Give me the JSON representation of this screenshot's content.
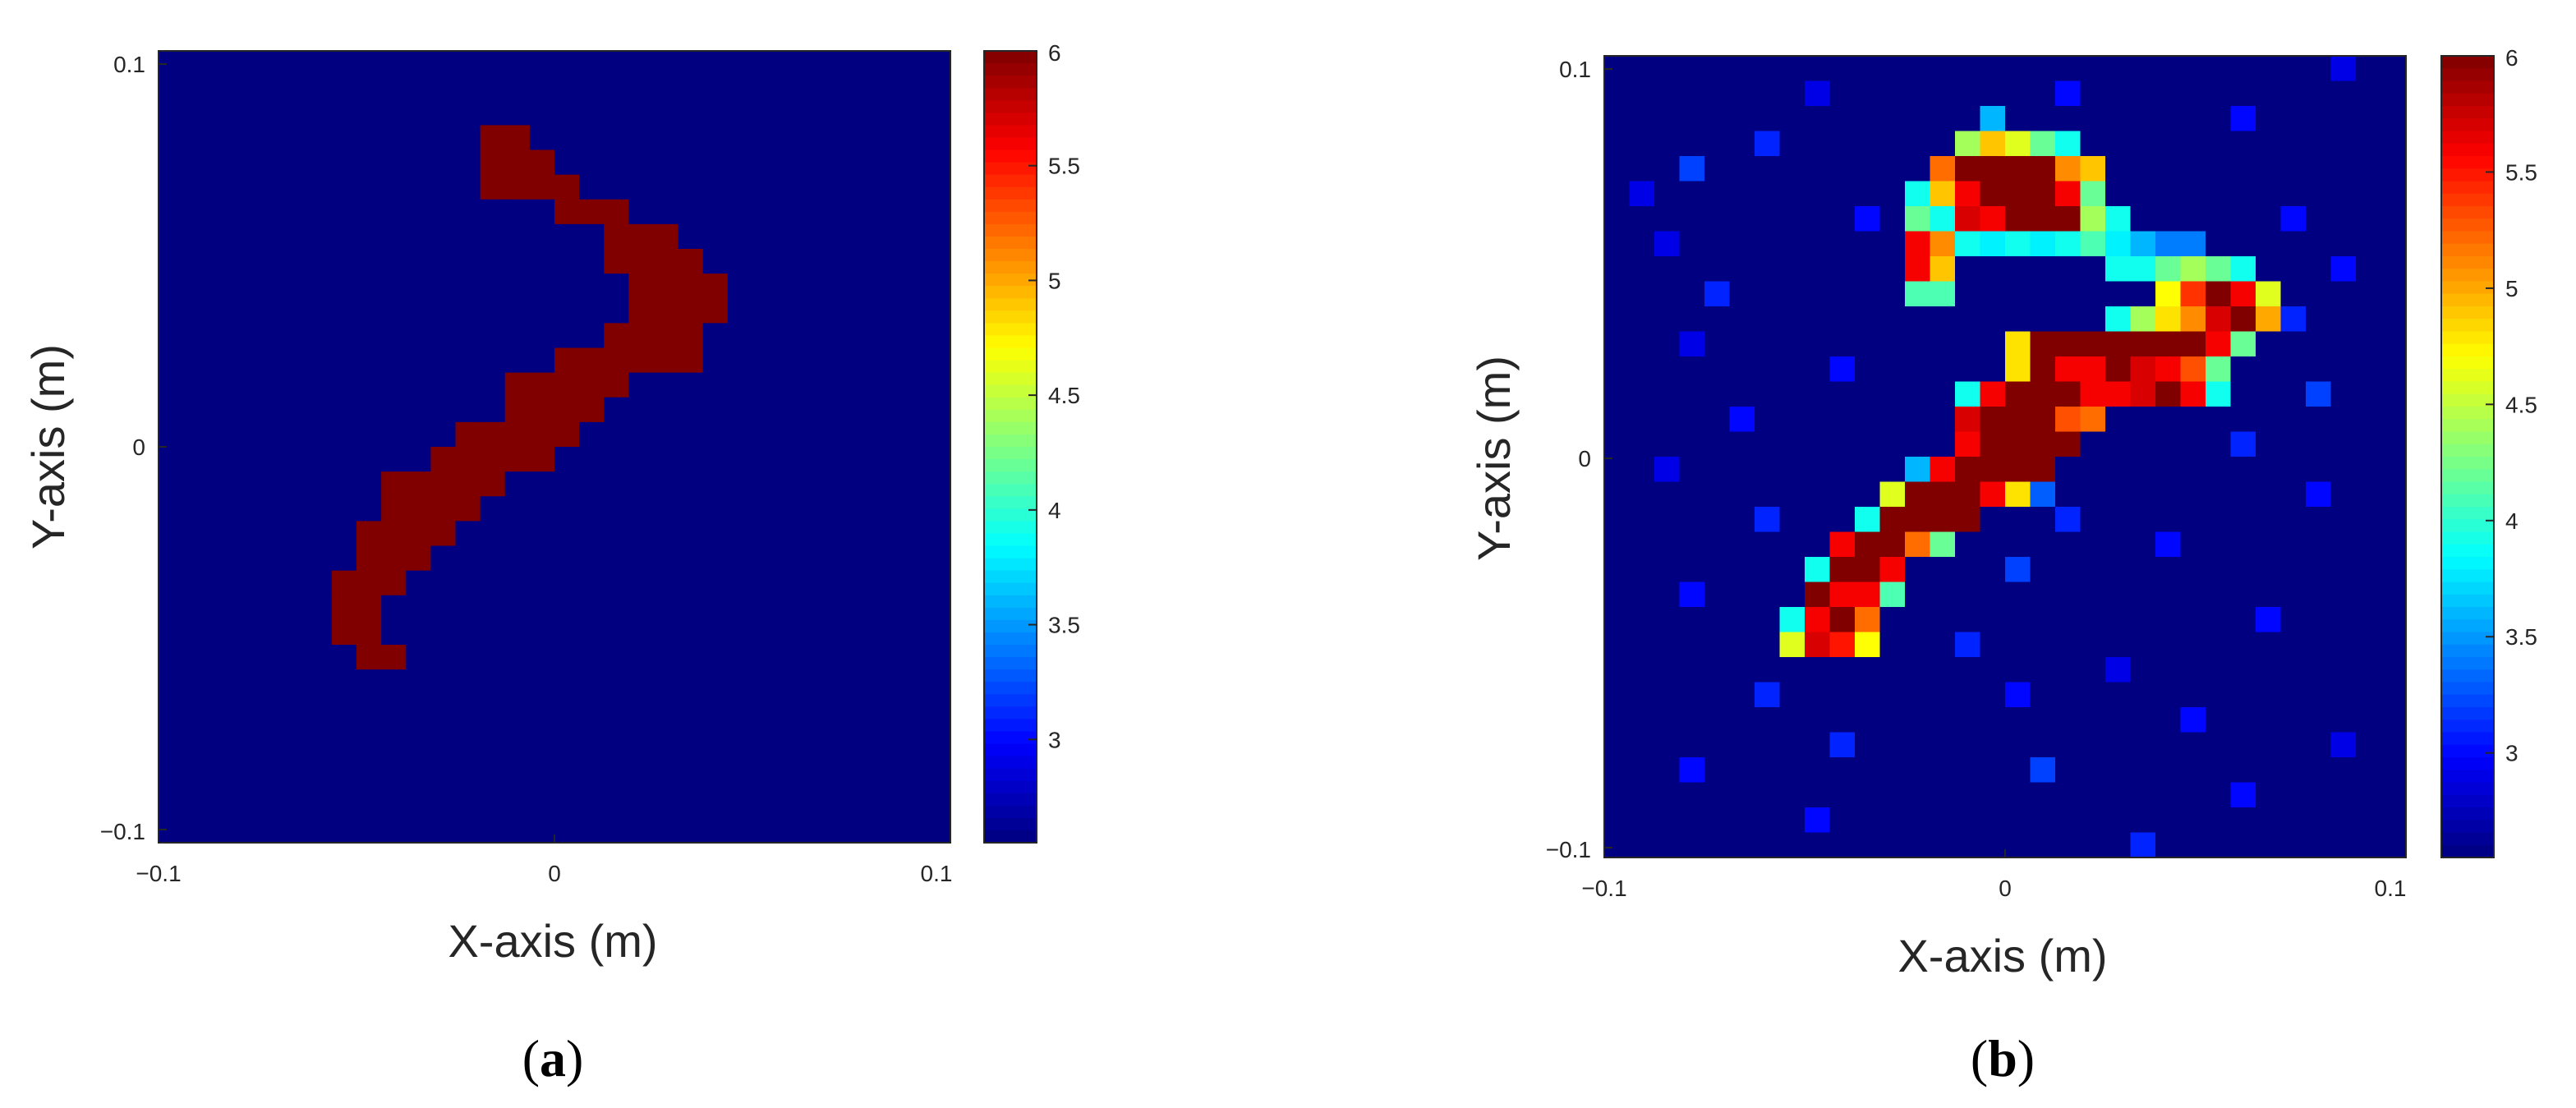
{
  "chart_data": [
    {
      "type": "heatmap",
      "panel_label": "a",
      "xlabel": "X-axis (m)",
      "ylabel": "Y-axis (m)",
      "xlim": [
        -0.1,
        0.1
      ],
      "ylim": [
        -0.1,
        0.1
      ],
      "grid_size": 32,
      "xticks": [
        "−0.1",
        "0",
        "0.1"
      ],
      "yticks": [
        "0.1",
        "0",
        "−0.1"
      ],
      "colorbar": {
        "min": 2.55,
        "max": 6,
        "ticks": [
          "6",
          "5.5",
          "5",
          "4.5",
          "4",
          "3.5",
          "3"
        ],
        "tick_values": [
          6,
          5.5,
          5,
          4.5,
          4,
          3.5,
          3
        ]
      },
      "background_value": 2.55,
      "shape_value": 6,
      "shape_row_spans": [
        [
          3,
          13,
          14
        ],
        [
          4,
          13,
          15
        ],
        [
          5,
          13,
          16
        ],
        [
          6,
          16,
          18
        ],
        [
          7,
          18,
          20
        ],
        [
          8,
          18,
          21
        ],
        [
          9,
          19,
          22
        ],
        [
          10,
          19,
          22
        ],
        [
          11,
          18,
          21
        ],
        [
          12,
          16,
          21
        ],
        [
          13,
          14,
          18
        ],
        [
          14,
          14,
          17
        ],
        [
          15,
          12,
          16
        ],
        [
          16,
          11,
          15
        ],
        [
          17,
          9,
          13
        ],
        [
          18,
          9,
          12
        ],
        [
          19,
          8,
          11
        ],
        [
          20,
          8,
          10
        ],
        [
          21,
          7,
          9
        ],
        [
          22,
          7,
          8
        ],
        [
          23,
          7,
          8
        ],
        [
          24,
          8,
          9
        ]
      ]
    },
    {
      "type": "heatmap",
      "panel_label": "b",
      "xlabel": "X-axis (m)",
      "ylabel": "Y-axis (m)",
      "xlim": [
        -0.1,
        0.1
      ],
      "ylim": [
        -0.1,
        0.1
      ],
      "grid_size": 32,
      "xticks": [
        "−0.1",
        "0",
        "0.1"
      ],
      "yticks": [
        "0.1",
        "0",
        "−0.1"
      ],
      "colorbar": {
        "min": 2.55,
        "max": 6,
        "ticks": [
          "6",
          "5.5",
          "5",
          "4.5",
          "4",
          "3.5",
          "3"
        ],
        "tick_values": [
          6,
          5.5,
          5,
          4.5,
          4,
          3.5,
          3
        ]
      },
      "background_value": 2.55,
      "cells": [
        [
          2,
          15,
          3.6
        ],
        [
          3,
          14,
          4.4
        ],
        [
          3,
          15,
          4.9
        ],
        [
          3,
          16,
          4.6
        ],
        [
          3,
          17,
          4.2
        ],
        [
          3,
          18,
          3.9
        ],
        [
          4,
          13,
          5.2
        ],
        [
          4,
          14,
          6
        ],
        [
          4,
          15,
          6
        ],
        [
          4,
          16,
          6
        ],
        [
          4,
          17,
          6
        ],
        [
          4,
          18,
          5.1
        ],
        [
          4,
          19,
          4.9
        ],
        [
          5,
          12,
          3.9
        ],
        [
          5,
          13,
          4.9
        ],
        [
          5,
          14,
          5.6
        ],
        [
          5,
          15,
          6
        ],
        [
          5,
          16,
          6
        ],
        [
          5,
          17,
          6
        ],
        [
          5,
          18,
          5.6
        ],
        [
          5,
          19,
          4.2
        ],
        [
          6,
          12,
          4.2
        ],
        [
          6,
          13,
          3.9
        ],
        [
          6,
          14,
          5.7
        ],
        [
          6,
          15,
          5.6
        ],
        [
          6,
          16,
          6
        ],
        [
          6,
          17,
          6
        ],
        [
          6,
          18,
          6
        ],
        [
          6,
          19,
          4.4
        ],
        [
          6,
          20,
          3.9
        ],
        [
          7,
          12,
          5.6
        ],
        [
          7,
          13,
          5.1
        ],
        [
          7,
          14,
          3.9
        ],
        [
          7,
          15,
          3.8
        ],
        [
          7,
          16,
          3.9
        ],
        [
          7,
          17,
          3.8
        ],
        [
          7,
          18,
          3.9
        ],
        [
          7,
          19,
          4.1
        ],
        [
          7,
          20,
          3.8
        ],
        [
          7,
          21,
          3.6
        ],
        [
          7,
          22,
          3.4
        ],
        [
          7,
          23,
          3.4
        ],
        [
          8,
          12,
          5.6
        ],
        [
          8,
          13,
          4.9
        ],
        [
          8,
          20,
          3.9
        ],
        [
          8,
          21,
          3.9
        ],
        [
          8,
          22,
          4.2
        ],
        [
          8,
          23,
          4.4
        ],
        [
          8,
          24,
          4.2
        ],
        [
          8,
          25,
          3.9
        ],
        [
          9,
          12,
          4.1
        ],
        [
          9,
          13,
          4.1
        ],
        [
          9,
          22,
          4.7
        ],
        [
          9,
          23,
          5.4
        ],
        [
          9,
          24,
          6
        ],
        [
          9,
          25,
          5.6
        ],
        [
          9,
          26,
          4.6
        ],
        [
          10,
          20,
          3.9
        ],
        [
          10,
          21,
          4.4
        ],
        [
          10,
          22,
          4.8
        ],
        [
          10,
          23,
          5.1
        ],
        [
          10,
          24,
          5.7
        ],
        [
          10,
          25,
          6
        ],
        [
          10,
          26,
          5
        ],
        [
          11,
          16,
          4.8
        ],
        [
          11,
          17,
          6
        ],
        [
          11,
          18,
          6
        ],
        [
          11,
          19,
          6
        ],
        [
          11,
          20,
          6
        ],
        [
          11,
          21,
          6
        ],
        [
          11,
          22,
          6
        ],
        [
          11,
          23,
          6
        ],
        [
          11,
          24,
          5.6
        ],
        [
          11,
          25,
          4.2
        ],
        [
          12,
          16,
          4.8
        ],
        [
          12,
          17,
          6
        ],
        [
          12,
          18,
          5.6
        ],
        [
          12,
          19,
          5.6
        ],
        [
          12,
          20,
          6
        ],
        [
          12,
          21,
          5.7
        ],
        [
          12,
          22,
          5.6
        ],
        [
          12,
          23,
          5.3
        ],
        [
          12,
          24,
          4.2
        ],
        [
          13,
          14,
          3.9
        ],
        [
          13,
          15,
          5.6
        ],
        [
          13,
          16,
          6
        ],
        [
          13,
          17,
          6
        ],
        [
          13,
          18,
          6
        ],
        [
          13,
          19,
          5.6
        ],
        [
          13,
          20,
          5.6
        ],
        [
          13,
          21,
          5.7
        ],
        [
          13,
          22,
          6
        ],
        [
          13,
          23,
          5.6
        ],
        [
          13,
          24,
          3.9
        ],
        [
          14,
          14,
          5.7
        ],
        [
          14,
          15,
          6
        ],
        [
          14,
          16,
          6
        ],
        [
          14,
          17,
          6
        ],
        [
          14,
          18,
          5.3
        ],
        [
          14,
          19,
          5.2
        ],
        [
          15,
          14,
          5.6
        ],
        [
          15,
          15,
          6
        ],
        [
          15,
          16,
          6
        ],
        [
          15,
          17,
          6
        ],
        [
          15,
          18,
          6
        ],
        [
          16,
          12,
          3.6
        ],
        [
          16,
          13,
          5.6
        ],
        [
          16,
          14,
          6
        ],
        [
          16,
          15,
          6
        ],
        [
          16,
          16,
          6
        ],
        [
          16,
          17,
          6
        ],
        [
          17,
          11,
          4.6
        ],
        [
          17,
          12,
          6
        ],
        [
          17,
          13,
          6
        ],
        [
          17,
          14,
          6
        ],
        [
          17,
          15,
          5.6
        ],
        [
          17,
          16,
          4.8
        ],
        [
          17,
          17,
          3.3
        ],
        [
          18,
          10,
          3.9
        ],
        [
          18,
          11,
          6
        ],
        [
          18,
          12,
          6
        ],
        [
          18,
          13,
          6
        ],
        [
          18,
          14,
          6
        ],
        [
          19,
          9,
          5.6
        ],
        [
          19,
          10,
          6
        ],
        [
          19,
          11,
          6
        ],
        [
          19,
          12,
          5.2
        ],
        [
          19,
          13,
          4.2
        ],
        [
          20,
          8,
          3.9
        ],
        [
          20,
          9,
          6
        ],
        [
          20,
          10,
          6
        ],
        [
          20,
          11,
          5.6
        ],
        [
          21,
          8,
          6
        ],
        [
          21,
          9,
          5.6
        ],
        [
          21,
          10,
          5.6
        ],
        [
          21,
          11,
          4.1
        ],
        [
          22,
          7,
          3.9
        ],
        [
          22,
          8,
          5.6
        ],
        [
          22,
          9,
          6
        ],
        [
          22,
          10,
          5.2
        ],
        [
          23,
          7,
          4.6
        ],
        [
          23,
          8,
          5.7
        ],
        [
          23,
          9,
          5.5
        ],
        [
          23,
          10,
          4.7
        ]
      ],
      "background_noise": [
        [
          3,
          6,
          3.1
        ],
        [
          4,
          3,
          3.2
        ],
        [
          5,
          1,
          2.9
        ],
        [
          6,
          10,
          3.0
        ],
        [
          7,
          2,
          2.9
        ],
        [
          8,
          29,
          3.0
        ],
        [
          9,
          4,
          3.1
        ],
        [
          10,
          27,
          3.1
        ],
        [
          11,
          3,
          2.9
        ],
        [
          12,
          9,
          3.0
        ],
        [
          13,
          28,
          3.2
        ],
        [
          14,
          5,
          3.0
        ],
        [
          15,
          25,
          3.1
        ],
        [
          16,
          2,
          2.9
        ],
        [
          17,
          28,
          3.0
        ],
        [
          18,
          6,
          3.1
        ],
        [
          18,
          18,
          3.1
        ],
        [
          19,
          22,
          3.0
        ],
        [
          20,
          16,
          3.2
        ],
        [
          21,
          3,
          3.0
        ],
        [
          22,
          26,
          3.0
        ],
        [
          23,
          14,
          3.1
        ],
        [
          24,
          20,
          2.9
        ],
        [
          25,
          6,
          3.1
        ],
        [
          25,
          16,
          3.0
        ],
        [
          26,
          23,
          3.0
        ],
        [
          27,
          9,
          3.1
        ],
        [
          27,
          29,
          2.9
        ],
        [
          28,
          3,
          3.0
        ],
        [
          28,
          17,
          3.2
        ],
        [
          29,
          25,
          3.0
        ],
        [
          30,
          8,
          3.0
        ],
        [
          31,
          21,
          3.1
        ],
        [
          1,
          18,
          3.0
        ],
        [
          1,
          8,
          2.9
        ],
        [
          2,
          25,
          3.0
        ],
        [
          0,
          29,
          2.9
        ],
        [
          6,
          27,
          3.0
        ]
      ]
    }
  ],
  "colors": {
    "plot_border": "#262626",
    "tick_text": "#262626"
  }
}
